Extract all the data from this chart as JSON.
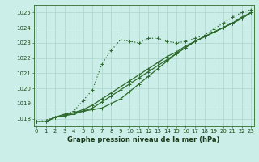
{
  "xlabel": "Graphe pression niveau de la mer (hPa)",
  "hours": [
    0,
    1,
    2,
    3,
    4,
    5,
    6,
    7,
    8,
    9,
    10,
    11,
    12,
    13,
    14,
    15,
    16,
    17,
    18,
    19,
    20,
    21,
    22,
    23
  ],
  "series1": [
    1017.8,
    1017.8,
    1018.1,
    1018.3,
    1018.4,
    1018.5,
    1018.6,
    1018.7,
    1019.0,
    1019.3,
    1019.8,
    1020.3,
    1020.8,
    1021.3,
    1021.8,
    1022.3,
    1022.7,
    1023.1,
    1023.4,
    1023.7,
    1024.0,
    1024.3,
    1024.7,
    1025.0
  ],
  "series2": [
    1017.8,
    1017.9,
    1018.1,
    1018.3,
    1018.5,
    1019.2,
    1019.9,
    1021.6,
    1022.5,
    1023.2,
    1023.1,
    1023.0,
    1023.3,
    1023.3,
    1023.1,
    1023.0,
    1023.1,
    1023.3,
    1023.5,
    1023.9,
    1024.3,
    1024.7,
    1025.0,
    1025.2
  ],
  "series3": [
    1017.8,
    1017.8,
    1018.1,
    1018.2,
    1018.3,
    1018.5,
    1018.7,
    1019.1,
    1019.5,
    1019.9,
    1020.3,
    1020.7,
    1021.1,
    1021.5,
    1021.9,
    1022.3,
    1022.7,
    1023.1,
    1023.4,
    1023.7,
    1024.0,
    1024.3,
    1024.6,
    1025.0
  ],
  "series4": [
    1017.8,
    1017.8,
    1018.1,
    1018.2,
    1018.4,
    1018.6,
    1018.9,
    1019.3,
    1019.7,
    1020.1,
    1020.5,
    1020.9,
    1021.3,
    1021.7,
    1022.1,
    1022.4,
    1022.8,
    1023.1,
    1023.4,
    1023.7,
    1024.0,
    1024.3,
    1024.6,
    1025.0
  ],
  "line_color": "#2d6a2d",
  "bg_color": "#cceee8",
  "grid_color": "#aad4cc",
  "ylim_min": 1017.5,
  "ylim_max": 1025.5,
  "yticks": [
    1018,
    1019,
    1020,
    1021,
    1022,
    1023,
    1024,
    1025
  ],
  "xticks": [
    0,
    1,
    2,
    3,
    4,
    5,
    6,
    7,
    8,
    9,
    10,
    11,
    12,
    13,
    14,
    15,
    16,
    17,
    18,
    19,
    20,
    21,
    22,
    23
  ],
  "tick_fontsize": 5.0,
  "label_fontsize": 6.0
}
